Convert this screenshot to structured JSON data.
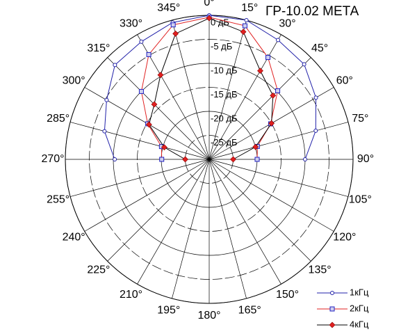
{
  "chart_data": {
    "type": "polar",
    "title": "ГР-10.02 МЕТА",
    "theta": [
      270,
      285,
      300,
      315,
      330,
      345,
      0,
      15,
      30,
      45,
      60,
      75,
      90
    ],
    "rlim": [
      -30,
      0
    ],
    "rticks": [
      {
        "value": 0,
        "label": "0 дБ"
      },
      {
        "value": -5,
        "label": "-5 дБ"
      },
      {
        "value": -10,
        "label": "-10 дБ"
      },
      {
        "value": -15,
        "label": "-15 дБ"
      },
      {
        "value": -20,
        "label": "-20 дБ"
      },
      {
        "value": -25,
        "label": "-25 дБ"
      }
    ],
    "thetaticks": [
      {
        "value": 0,
        "label": "0°"
      },
      {
        "value": 15,
        "label": "15°"
      },
      {
        "value": 30,
        "label": "30°"
      },
      {
        "value": 45,
        "label": "45°"
      },
      {
        "value": 60,
        "label": "60°"
      },
      {
        "value": 75,
        "label": "75°"
      },
      {
        "value": 90,
        "label": "90°"
      },
      {
        "value": 105,
        "label": "105°"
      },
      {
        "value": 120,
        "label": "120°"
      },
      {
        "value": 135,
        "label": "135°"
      },
      {
        "value": 150,
        "label": "150°"
      },
      {
        "value": 165,
        "label": "165°"
      },
      {
        "value": 180,
        "label": "180°"
      },
      {
        "value": 195,
        "label": "195°"
      },
      {
        "value": 210,
        "label": "210°"
      },
      {
        "value": 225,
        "label": "225°"
      },
      {
        "value": 240,
        "label": "240°"
      },
      {
        "value": 255,
        "label": "255°"
      },
      {
        "value": 270,
        "label": "270°"
      },
      {
        "value": 285,
        "label": "285°"
      },
      {
        "value": 300,
        "label": "300°"
      },
      {
        "value": 315,
        "label": "315°"
      },
      {
        "value": 330,
        "label": "330°"
      },
      {
        "value": 345,
        "label": "345°"
      }
    ],
    "series": [
      {
        "name": "1кГц",
        "color": "#1f1fa8",
        "marker": "circle",
        "marker_color": "#1f1fa8",
        "values": [
          -10.3,
          -7.4,
          -5.3,
          -2.2,
          -1.7,
          -0.5,
          0,
          0,
          -1.3,
          -2,
          -4.3,
          -7,
          -10
        ]
      },
      {
        "name": "2кГц",
        "color": "#e02020",
        "marker": "square",
        "marker_color": "#2020c0",
        "values": [
          -20.1,
          -19.7,
          -15.2,
          -10,
          -4.8,
          -1,
          -0.4,
          -1.2,
          -5.5,
          -9.8,
          -15.2,
          -19.6,
          -20
        ]
      },
      {
        "name": "4кГц",
        "color": "#000000",
        "marker": "diamond",
        "marker_color": "#e02020",
        "values": [
          -25,
          -20.3,
          -15.5,
          -13.8,
          -9.7,
          -2.9,
          -0.6,
          -2.5,
          -8.7,
          -11.2,
          -15,
          -20,
          -25
        ]
      }
    ]
  }
}
